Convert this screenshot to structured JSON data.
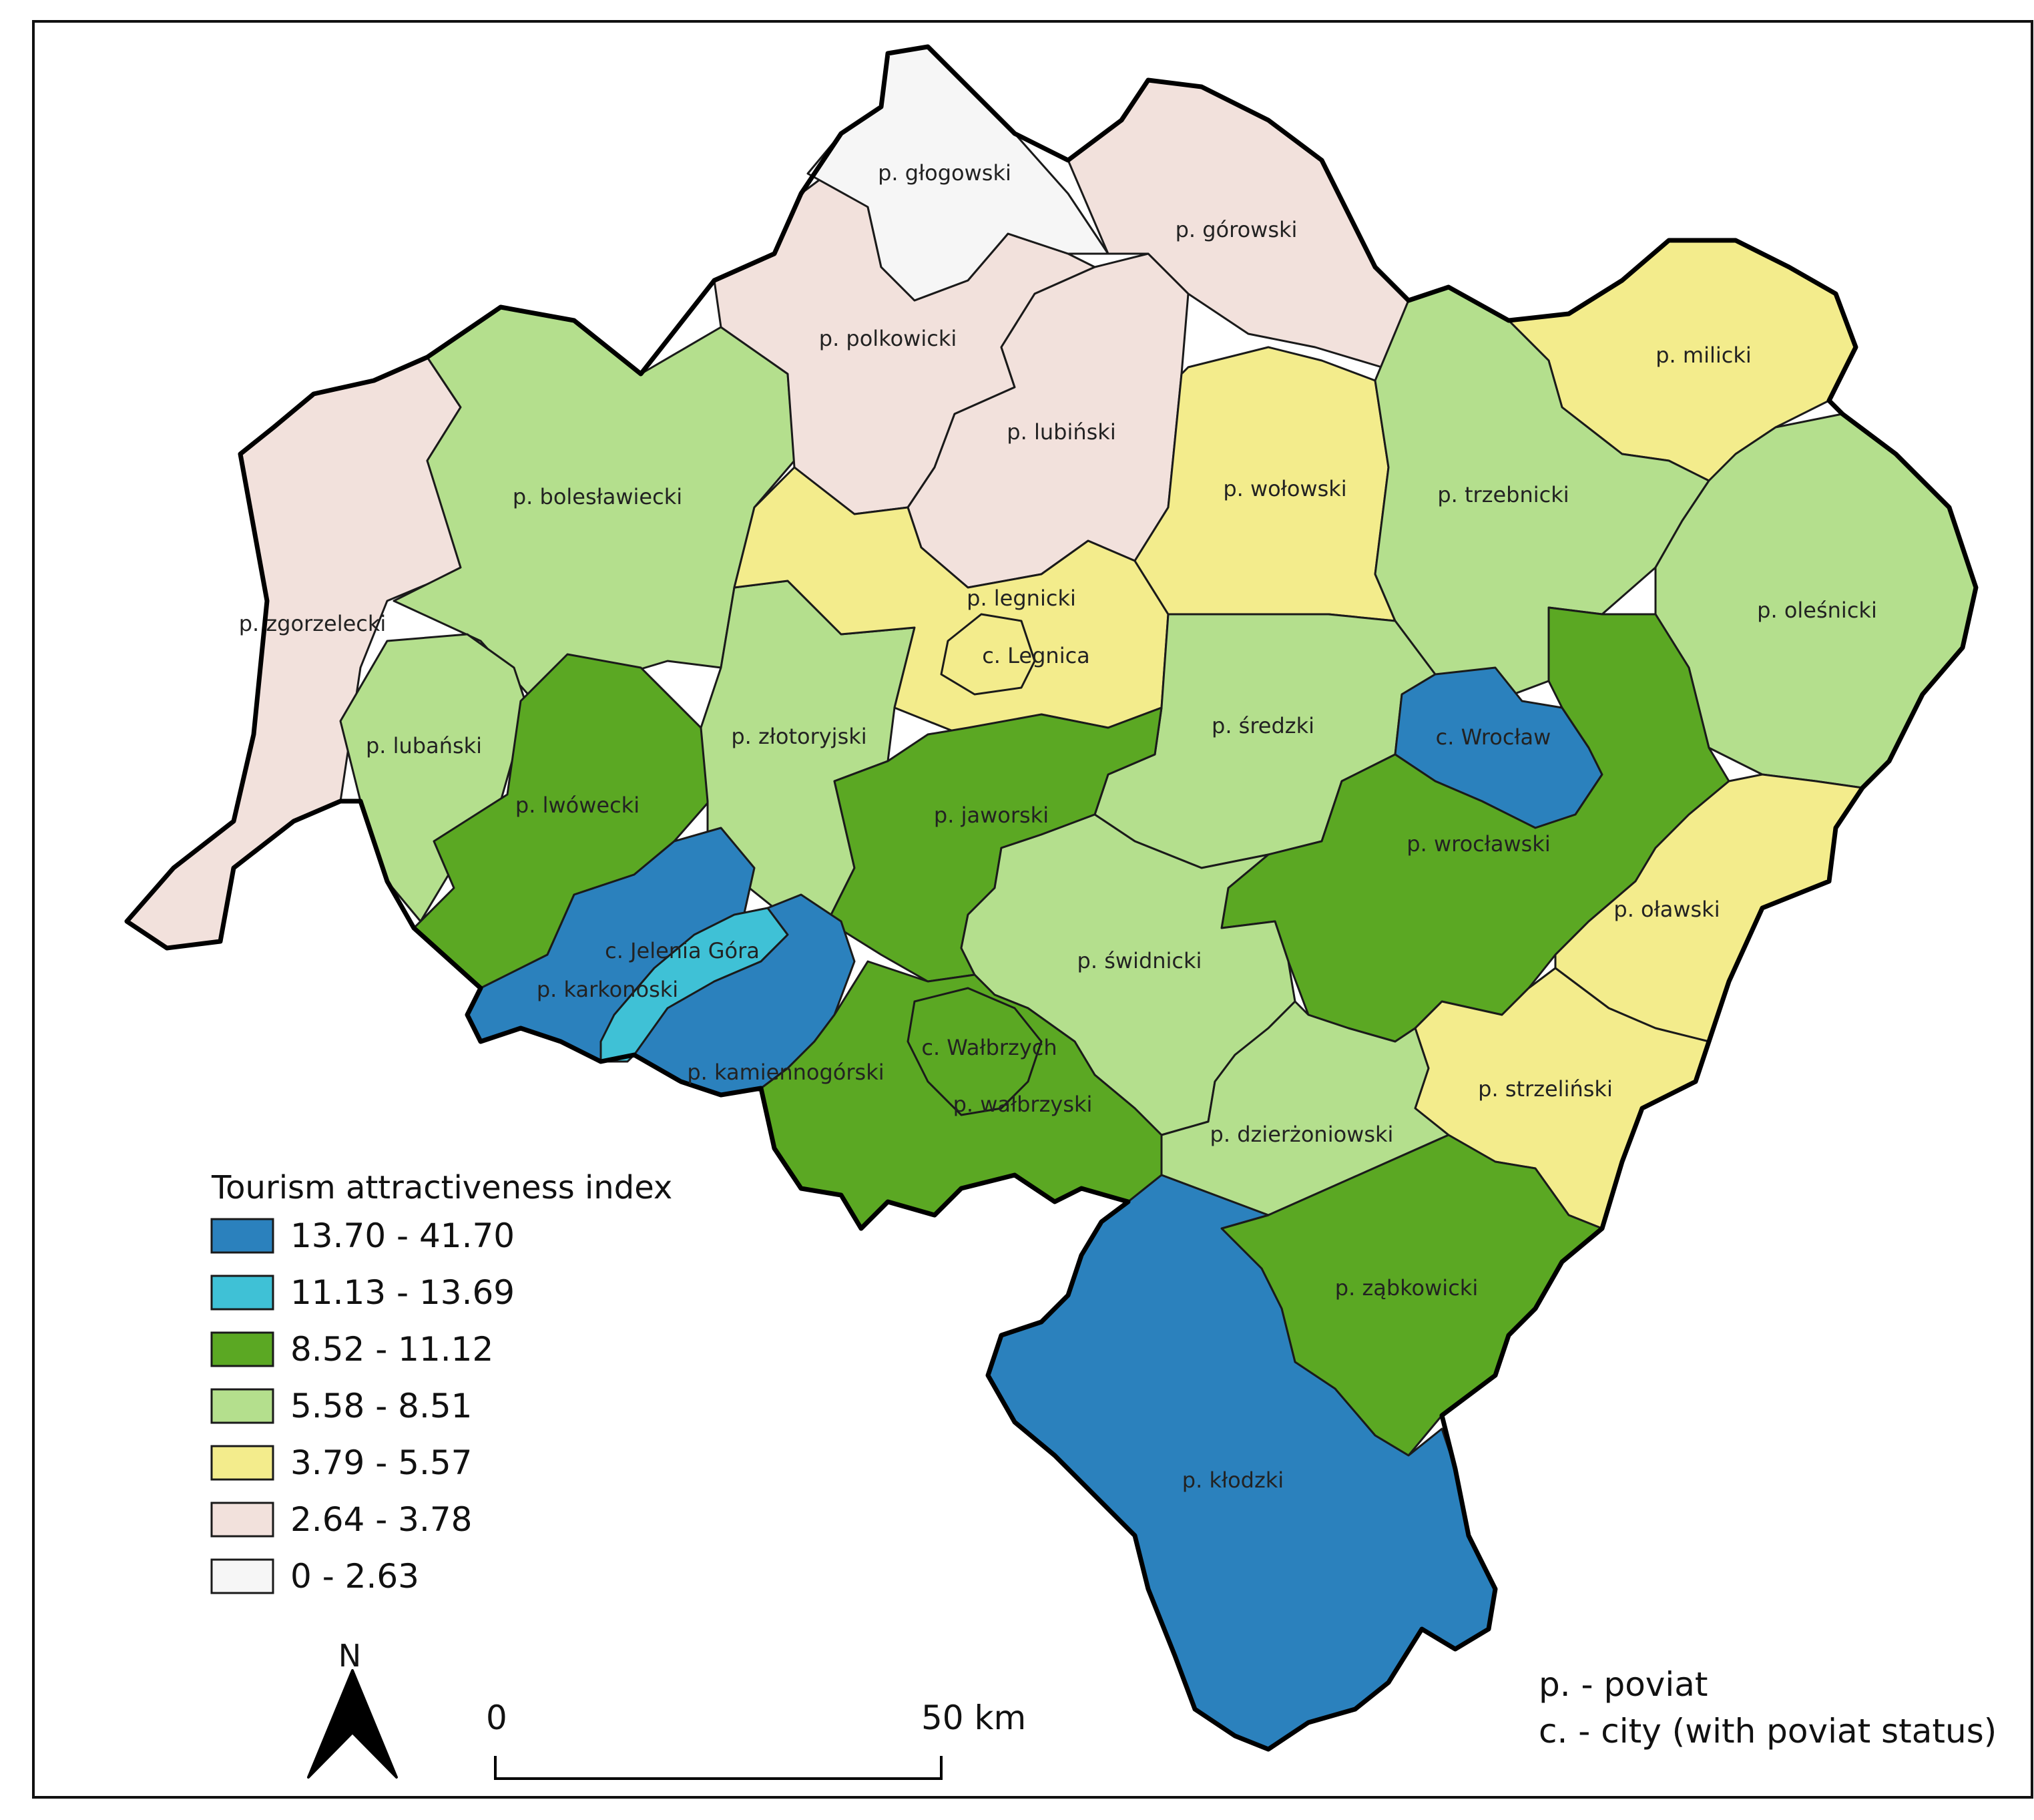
{
  "colors": {
    "c13_70_41_70": "#2b81bd",
    "c11_13_13_69": "#3fc1d6",
    "c8_52_11_12": "#5ba823",
    "c5_58_8_51": "#b4df8d",
    "c3_79_5_57": "#f3ec8c",
    "c2_64_3_78": "#f2e1dc",
    "c0_2_63": "#f6f6f6"
  },
  "legend": {
    "title": "Tourism attractiveness index",
    "classes": [
      {
        "label": "13.70 - 41.70",
        "color": "#2b81bd"
      },
      {
        "label": "11.13 - 13.69",
        "color": "#3fc1d6"
      },
      {
        "label": "8.52 - 11.12",
        "color": "#5ba823"
      },
      {
        "label": "5.58 - 8.51",
        "color": "#b4df8d"
      },
      {
        "label": "3.79 - 5.57",
        "color": "#f3ec8c"
      },
      {
        "label": "2.64 - 3.78",
        "color": "#f2e1dc"
      },
      {
        "label": "0 - 2.63",
        "color": "#f6f6f6"
      }
    ]
  },
  "regions": [
    {
      "label": "p. głogowski",
      "class": "0 - 2.63"
    },
    {
      "label": "p. górowski",
      "class": "2.64 - 3.78"
    },
    {
      "label": "p. polkowicki",
      "class": "2.64 - 3.78"
    },
    {
      "label": "p. lubiński",
      "class": "2.64 - 3.78"
    },
    {
      "label": "p. milicki",
      "class": "3.79 - 5.57"
    },
    {
      "label": "p. wołowski",
      "class": "3.79 - 5.57"
    },
    {
      "label": "p. trzebnicki",
      "class": "5.58 - 8.51"
    },
    {
      "label": "p. bolesławiecki",
      "class": "5.58 - 8.51"
    },
    {
      "label": "p. zgorzelecki",
      "class": "2.64 - 3.78"
    },
    {
      "label": "p. legnicki",
      "class": "3.79 - 5.57"
    },
    {
      "label": "c. Legnica",
      "class": "3.79 - 5.57"
    },
    {
      "label": "p. oleśnicki",
      "class": "5.58 - 8.51"
    },
    {
      "label": "p. średzki",
      "class": "5.58 - 8.51"
    },
    {
      "label": "c. Wrocław",
      "class": "13.70 - 41.70"
    },
    {
      "label": "p. lubański",
      "class": "5.58 - 8.51"
    },
    {
      "label": "p. złotoryjski",
      "class": "5.58 - 8.51"
    },
    {
      "label": "p. lwówecki",
      "class": "8.52 - 11.12"
    },
    {
      "label": "p. jaworski",
      "class": "8.52 - 11.12"
    },
    {
      "label": "p. wrocławski",
      "class": "8.52 - 11.12"
    },
    {
      "label": "p. oławski",
      "class": "3.79 - 5.57"
    },
    {
      "label": "c. Jelenia Góra",
      "class": "11.13 - 13.69"
    },
    {
      "label": "p. świdnicki",
      "class": "5.58 - 8.51"
    },
    {
      "label": "p. karkonoski",
      "class": "13.70 - 41.70"
    },
    {
      "label": "c. Wałbrzych",
      "class": "8.52 - 11.12"
    },
    {
      "label": "p. strzeliński",
      "class": "3.79 - 5.57"
    },
    {
      "label": "p. kamiennogórski",
      "class": "13.70 - 41.70"
    },
    {
      "label": "p. wałbrzyski",
      "class": "8.52 - 11.12"
    },
    {
      "label": "p. dzierżoniowski",
      "class": "5.58 - 8.51"
    },
    {
      "label": "p. ząbkowicki",
      "class": "8.52 - 11.12"
    },
    {
      "label": "p. kłodzki",
      "class": "13.70 - 41.70"
    }
  ],
  "notes": {
    "poviat": "p. - poviat",
    "city": "c. - city (with poviat status)"
  },
  "scalebar": {
    "start_label": "0",
    "end_label": "50 km"
  },
  "north_arrow": {
    "label": "N",
    "icon": "north-arrow-icon"
  }
}
